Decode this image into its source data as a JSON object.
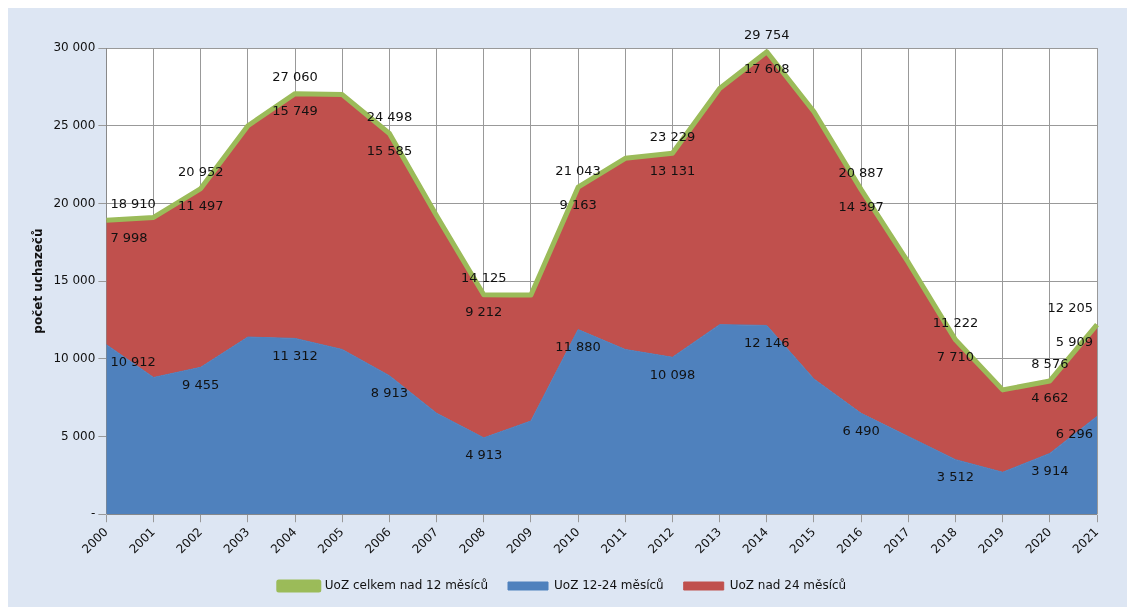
{
  "chart_data": {
    "type": "area",
    "stacked": true,
    "ylabel": "počet uchazečů",
    "categories": [
      "2000",
      "2001",
      "2002",
      "2003",
      "2004",
      "2005",
      "2006",
      "2007",
      "2008",
      "2009",
      "2010",
      "2011",
      "2012",
      "2013",
      "2014",
      "2015",
      "2016",
      "2017",
      "2018",
      "2019",
      "2020",
      "2021"
    ],
    "ylim": [
      0,
      30000
    ],
    "yticks": [
      {
        "value": 0,
        "label": "-"
      },
      {
        "value": 5000,
        "label": "5 000"
      },
      {
        "value": 10000,
        "label": "10 000"
      },
      {
        "value": 15000,
        "label": "15 000"
      },
      {
        "value": 20000,
        "label": "20 000"
      },
      {
        "value": 25000,
        "label": "25 000"
      },
      {
        "value": 30000,
        "label": "30 000"
      }
    ],
    "grid": true,
    "legend": "bottom",
    "series": [
      {
        "name": "UoZ 12-24 měsíců",
        "color": "#4f81bd",
        "values": [
          10912,
          8800,
          9455,
          11400,
          11312,
          10600,
          8913,
          6500,
          4913,
          6000,
          11880,
          10600,
          10098,
          12200,
          12146,
          8700,
          6490,
          5000,
          3512,
          2700,
          3914,
          6296
        ],
        "value_labels": [
          "10 912",
          null,
          "9 455",
          null,
          "11 312",
          null,
          "8 913",
          null,
          "4 913",
          null,
          "11 880",
          null,
          "10 098",
          null,
          "12 146",
          null,
          "6 490",
          null,
          "3 512",
          null,
          "3 914",
          "6 296"
        ]
      },
      {
        "name": "UoZ nad 24 měsíců",
        "color": "#c0504d",
        "values": [
          7998,
          10300,
          11497,
          13600,
          15749,
          16400,
          15585,
          12700,
          9212,
          8100,
          9163,
          12300,
          13131,
          15200,
          17608,
          17200,
          14397,
          11200,
          7710,
          5300,
          4662,
          5909
        ],
        "value_labels": [
          "7 998",
          null,
          "11 497",
          null,
          "15 749",
          null,
          "15 585",
          null,
          "9 212",
          null,
          "9 163",
          null,
          "13 131",
          null,
          "17 608",
          null,
          "14 397",
          null,
          "7 710",
          null,
          "4 662",
          "5 909"
        ]
      },
      {
        "name": "UoZ celkem nad 12 měsíců",
        "type": "line",
        "color": "#9bbb59",
        "values": [
          18910,
          19100,
          20952,
          25000,
          27060,
          27000,
          24498,
          19200,
          14125,
          14100,
          21043,
          22900,
          23229,
          27400,
          29754,
          25900,
          20887,
          16200,
          11222,
          8000,
          8576,
          12205
        ],
        "value_labels": [
          "18 910",
          null,
          "20 952",
          null,
          "27 060",
          null,
          "24 498",
          null,
          "14 125",
          null,
          "21 043",
          null,
          "23 229",
          null,
          "29 754",
          null,
          "20 887",
          null,
          "11 222",
          null,
          "8 576",
          "12 205"
        ]
      }
    ]
  }
}
